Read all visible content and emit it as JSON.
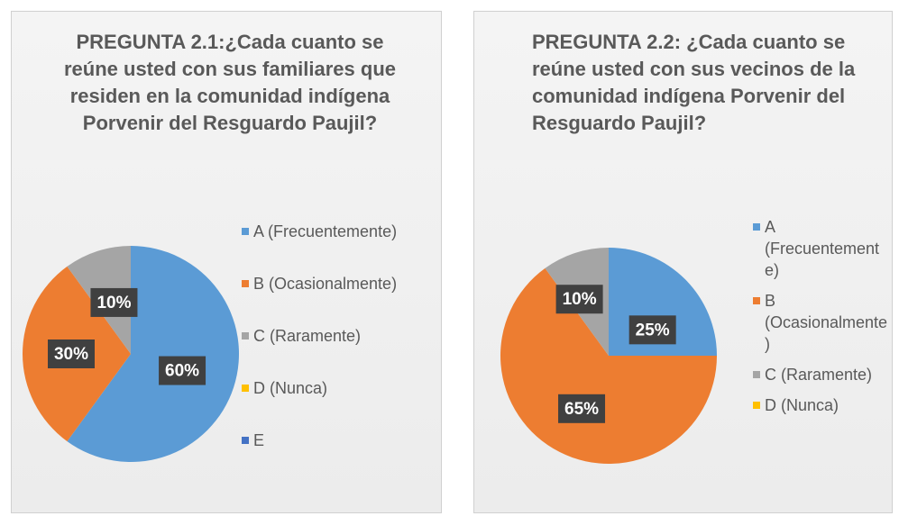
{
  "chart_data": [
    {
      "type": "pie",
      "title": "PREGUNTA 2.1:¿Cada cuanto se reúne usted con sus familiares que residen en la comunidad indígena Porvenir del Resguardo Paujil?",
      "categories": [
        "A (Frecuentemente)",
        "B (Ocasionalmente)",
        "C (Raramente)",
        "D (Nunca)",
        "E"
      ],
      "values": [
        60,
        30,
        10,
        0,
        0
      ],
      "value_labels": [
        "60%",
        "30%",
        "10%",
        null,
        null
      ],
      "colors": [
        "#5b9bd5",
        "#ed7d31",
        "#a5a5a5",
        "#ffc000",
        "#4472c4"
      ]
    },
    {
      "type": "pie",
      "title": "PREGUNTA 2.2: ¿Cada cuanto se reúne usted con sus vecinos de la comunidad indígena Porvenir del Resguardo Paujil?",
      "categories": [
        "A (Frecuentemente)",
        "B (Ocasionalmente)",
        "C (Raramente)",
        "D (Nunca)"
      ],
      "values": [
        25,
        65,
        10,
        0
      ],
      "value_labels": [
        "25%",
        "65%",
        "10%",
        null
      ],
      "colors": [
        "#5b9bd5",
        "#ed7d31",
        "#a5a5a5",
        "#ffc000"
      ]
    }
  ]
}
